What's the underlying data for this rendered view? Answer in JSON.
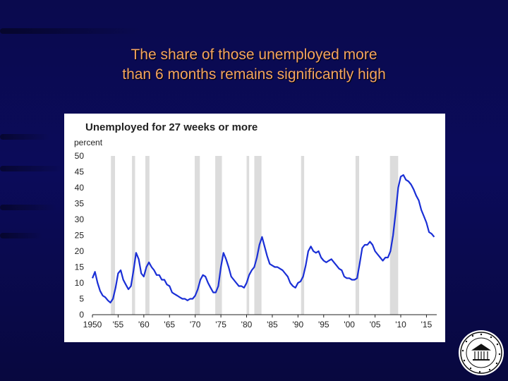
{
  "slide": {
    "title_line1": "The share of those unemployed more",
    "title_line2": "than 6 months remains significantly high",
    "colors": {
      "background": "#0b0b5a",
      "title": "#f4a460",
      "line": "#1a2fd6",
      "recession": "#dcdcdc"
    }
  },
  "chart_data": {
    "type": "line",
    "title": "Unemployed for 27 weeks or more",
    "ylabel": "percent",
    "ylim": [
      0,
      50
    ],
    "yticks": [
      0,
      5,
      10,
      15,
      20,
      25,
      30,
      35,
      40,
      45,
      50
    ],
    "xlim": [
      1950,
      2017
    ],
    "xticks": [
      {
        "value": 1950,
        "label": "1950"
      },
      {
        "value": 1955,
        "label": "'55"
      },
      {
        "value": 1960,
        "label": "'60"
      },
      {
        "value": 1965,
        "label": "'65"
      },
      {
        "value": 1970,
        "label": "'70"
      },
      {
        "value": 1975,
        "label": "'75"
      },
      {
        "value": 1980,
        "label": "'80"
      },
      {
        "value": 1985,
        "label": "'85"
      },
      {
        "value": 1990,
        "label": "'90"
      },
      {
        "value": 1995,
        "label": "'95"
      },
      {
        "value": 2000,
        "label": "'00"
      },
      {
        "value": 2005,
        "label": "'05"
      },
      {
        "value": 2010,
        "label": "'10"
      },
      {
        "value": 2015,
        "label": "'15"
      }
    ],
    "grid": false,
    "recessions": [
      [
        1953.6,
        1954.4
      ],
      [
        1957.7,
        1958.3
      ],
      [
        1960.3,
        1961.1
      ],
      [
        1969.9,
        1970.9
      ],
      [
        1973.9,
        1975.2
      ],
      [
        1980.0,
        1980.5
      ],
      [
        1981.5,
        1982.9
      ],
      [
        1990.6,
        1991.2
      ],
      [
        2001.2,
        2001.9
      ],
      [
        2007.9,
        2009.5
      ]
    ],
    "series": [
      {
        "color": "#1a2fd6",
        "x": [
          1950,
          1950.5,
          1951,
          1951.5,
          1952,
          1952.5,
          1953,
          1953.5,
          1954,
          1954.5,
          1955,
          1955.5,
          1956,
          1956.5,
          1957,
          1957.5,
          1958,
          1958.5,
          1959,
          1959.5,
          1960,
          1960.5,
          1961,
          1961.5,
          1962,
          1962.5,
          1963,
          1963.5,
          1964,
          1964.5,
          1965,
          1965.5,
          1966,
          1966.5,
          1967,
          1967.5,
          1968,
          1968.5,
          1969,
          1969.5,
          1970,
          1970.5,
          1971,
          1971.5,
          1972,
          1972.5,
          1973,
          1973.5,
          1974,
          1974.5,
          1975,
          1975.5,
          1976,
          1976.5,
          1977,
          1977.5,
          1978,
          1978.5,
          1979,
          1979.5,
          1980,
          1980.5,
          1981,
          1981.5,
          1982,
          1982.5,
          1983,
          1983.5,
          1984,
          1984.5,
          1985,
          1985.5,
          1986,
          1986.5,
          1987,
          1987.5,
          1988,
          1988.5,
          1989,
          1989.5,
          1990,
          1990.5,
          1991,
          1991.5,
          1992,
          1992.5,
          1993,
          1993.5,
          1994,
          1994.5,
          1995,
          1995.5,
          1996,
          1996.5,
          1997,
          1997.5,
          1998,
          1998.5,
          1999,
          1999.5,
          2000,
          2000.5,
          2001,
          2001.5,
          2002,
          2002.5,
          2003,
          2003.5,
          2004,
          2004.5,
          2005,
          2005.5,
          2006,
          2006.5,
          2007,
          2007.5,
          2008,
          2008.5,
          2009,
          2009.5,
          2010,
          2010.5,
          2011,
          2011.5,
          2012,
          2012.5,
          2013,
          2013.5,
          2014,
          2014.5,
          2015,
          2015.5,
          2016,
          2016.5
        ],
        "values": [
          11.5,
          13.5,
          10,
          7.5,
          6,
          5.5,
          4.5,
          3.8,
          5,
          8.5,
          13,
          14,
          11,
          9.5,
          8,
          9,
          14,
          19.5,
          17.5,
          13,
          12,
          15,
          16.5,
          15,
          14,
          12.5,
          12.5,
          11,
          11,
          9.5,
          9,
          7,
          6.5,
          6,
          5.5,
          5,
          5,
          4.5,
          5,
          5,
          6,
          8,
          11,
          12.5,
          12,
          10,
          8.5,
          7,
          7,
          9,
          15,
          19.5,
          17.5,
          15,
          12,
          11,
          10,
          9,
          9,
          8.5,
          10,
          12.5,
          14,
          15,
          18,
          22,
          24.5,
          21.5,
          18.5,
          16,
          15.5,
          15,
          15,
          14.5,
          14,
          13,
          12,
          10,
          9,
          8.5,
          10,
          10.5,
          12,
          15.5,
          20,
          21.5,
          20,
          19.5,
          20,
          18,
          17,
          16.5,
          17,
          17.5,
          16.5,
          15.5,
          14.5,
          14,
          12,
          11.5,
          11.5,
          11,
          11,
          11.5,
          16,
          21,
          22,
          22,
          23,
          22,
          20,
          19,
          18,
          17,
          18,
          18,
          20,
          25,
          32,
          40,
          43.5,
          44,
          42.5,
          42,
          41,
          39.5,
          37.5,
          36,
          33,
          31,
          29,
          26,
          25.5,
          24.5
        ]
      }
    ]
  }
}
